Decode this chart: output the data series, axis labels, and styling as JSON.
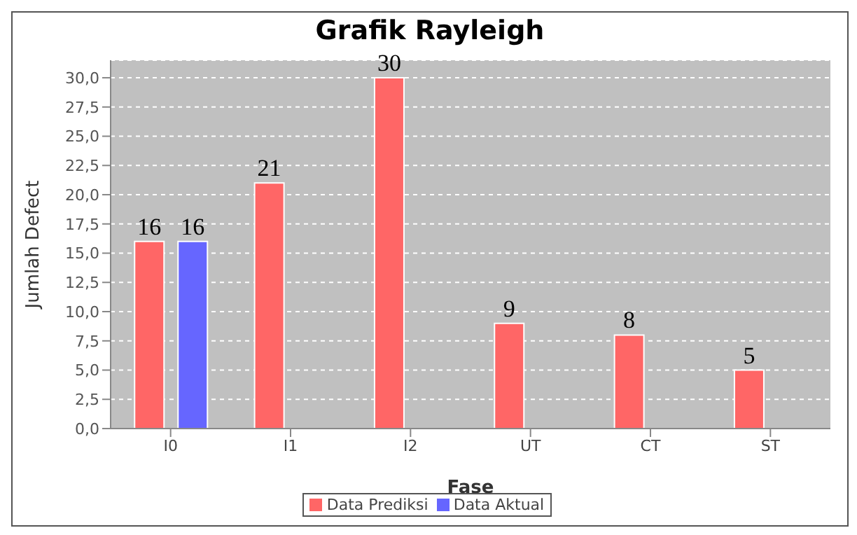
{
  "chart_data": {
    "type": "bar",
    "title": "Grafik Rayleigh",
    "xlabel": "Fase",
    "ylabel": "Jumlah Defect",
    "categories": [
      "I0",
      "I1",
      "I2",
      "UT",
      "CT",
      "ST"
    ],
    "series": [
      {
        "name": "Data Prediksi",
        "color": "#ff6666",
        "values": [
          16,
          21,
          30,
          9,
          8,
          5
        ]
      },
      {
        "name": "Data Aktual",
        "color": "#6666ff",
        "values": [
          16,
          null,
          null,
          null,
          null,
          null
        ]
      }
    ],
    "ylim": [
      0,
      31.5
    ],
    "yticks": [
      {
        "value": 0,
        "label": "0,0"
      },
      {
        "value": 2.5,
        "label": "2,5"
      },
      {
        "value": 5,
        "label": "5,0"
      },
      {
        "value": 7.5,
        "label": "7,5"
      },
      {
        "value": 10,
        "label": "10,0"
      },
      {
        "value": 12.5,
        "label": "12,5"
      },
      {
        "value": 15,
        "label": "15,0"
      },
      {
        "value": 17.5,
        "label": "17,5"
      },
      {
        "value": 20,
        "label": "20,0"
      },
      {
        "value": 22.5,
        "label": "22,5"
      },
      {
        "value": 25,
        "label": "25,0"
      },
      {
        "value": 27.5,
        "label": "27,5"
      },
      {
        "value": 30,
        "label": "30,0"
      }
    ],
    "grid": "y",
    "legend": "bottom",
    "data_labels": true
  }
}
